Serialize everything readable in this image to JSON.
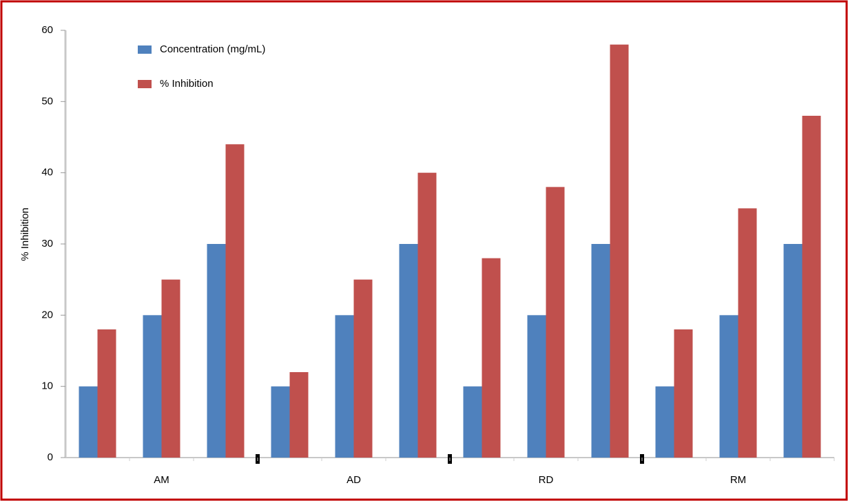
{
  "chart_data": {
    "type": "bar",
    "ylabel": "% Inhibition",
    "categories": [
      null,
      null,
      null,
      null,
      null,
      null,
      null,
      null,
      null,
      null,
      null,
      null
    ],
    "groups": [
      "AM",
      "AD",
      "RD",
      "RM"
    ],
    "series": [
      {
        "name": "Concentration (mg/mL)",
        "color": "#4f81bd",
        "values": [
          10,
          20,
          30,
          10,
          20,
          30,
          10,
          20,
          30,
          10,
          20,
          30
        ]
      },
      {
        "name": "% Inhibition",
        "color": "#c0504d",
        "values": [
          18,
          25,
          44,
          12,
          25,
          40,
          28,
          38,
          58,
          18,
          35,
          48
        ]
      }
    ],
    "ylim": [
      0,
      60
    ],
    "yticks": [
      0,
      10,
      20,
      30,
      40,
      50,
      60
    ],
    "legend": "upper left"
  }
}
